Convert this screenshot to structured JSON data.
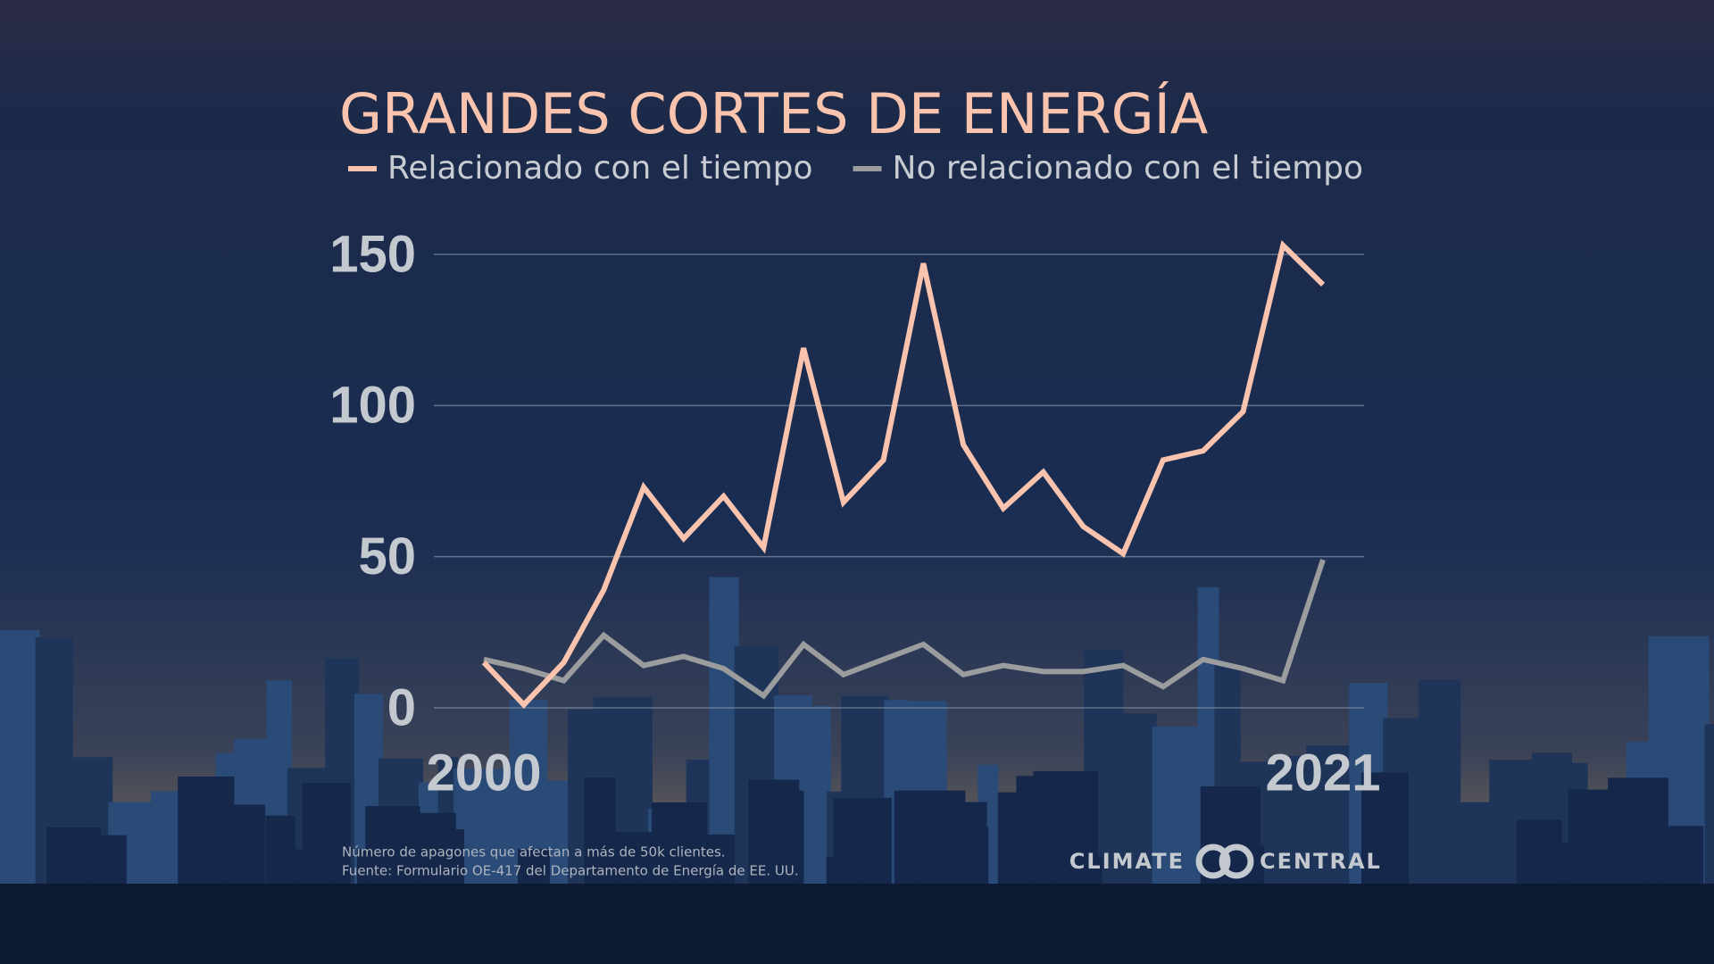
{
  "chart_data": {
    "type": "line",
    "title": "GRANDES CORTES DE ENERGÍA",
    "x": [
      2000,
      2001,
      2002,
      2003,
      2004,
      2005,
      2006,
      2007,
      2008,
      2009,
      2010,
      2011,
      2012,
      2013,
      2014,
      2015,
      2016,
      2017,
      2018,
      2019,
      2020,
      2021
    ],
    "series": [
      {
        "name": "Relacionado con el tiempo",
        "color": "#f9c3ad",
        "values": [
          15,
          1,
          15,
          39,
          73,
          56,
          70,
          53,
          119,
          68,
          82,
          147,
          87,
          66,
          78,
          60,
          51,
          82,
          85,
          98,
          153,
          140
        ]
      },
      {
        "name": "No relacionado con el tiempo",
        "color": "#9a9c9e",
        "values": [
          16,
          13,
          9,
          24,
          14,
          17,
          13,
          4,
          21,
          11,
          16,
          21,
          11,
          14,
          12,
          12,
          14,
          7,
          16,
          13,
          9,
          49
        ]
      }
    ],
    "xlim": [
      2000,
      2021
    ],
    "xticks": [
      2000,
      2021
    ],
    "ylim": [
      0,
      150
    ],
    "yticks": [
      0,
      50,
      100,
      150
    ],
    "grid": true,
    "notes": [
      "Número de apagones que afectan a más de 50k clientes.",
      "Fuente: Formulario OE-417 del Departamento de Energía de EE. UU."
    ],
    "logo": [
      "CLIMATE",
      "CENTRAL"
    ]
  }
}
